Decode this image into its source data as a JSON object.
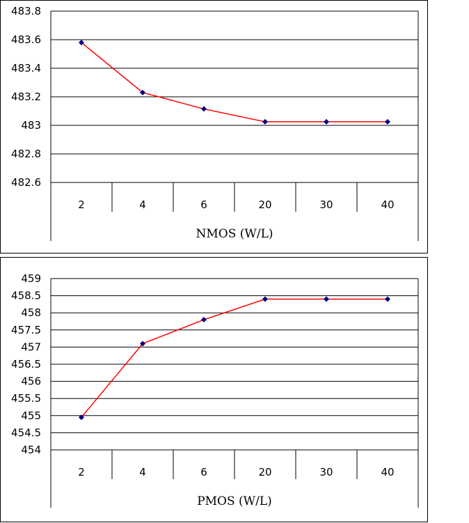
{
  "chart_data": [
    {
      "type": "line",
      "categories": [
        "2",
        "4",
        "6",
        "20",
        "30",
        "40"
      ],
      "series": [
        {
          "values": [
            483.58,
            483.23,
            483.115,
            483.025,
            483.025,
            483.025
          ],
          "line_color": "#ff0000",
          "marker_color": "#000080"
        }
      ],
      "yticks": [
        "483.8",
        "483.6",
        "483.4",
        "483.2",
        "483",
        "482.8",
        "482.6"
      ],
      "ylim": [
        482.6,
        483.8
      ],
      "xlabel": "NMOS (W/L)",
      "grid": true
    },
    {
      "type": "line",
      "categories": [
        "2",
        "4",
        "6",
        "20",
        "30",
        "40"
      ],
      "series": [
        {
          "values": [
            454.95,
            457.1,
            457.8,
            458.4,
            458.4,
            458.4
          ],
          "line_color": "#ff0000",
          "marker_color": "#000080"
        }
      ],
      "yticks": [
        "459",
        "458.5",
        "458",
        "457.5",
        "457",
        "456.5",
        "456",
        "455.5",
        "455",
        "454.5",
        "454"
      ],
      "ylim": [
        454,
        459
      ],
      "xlabel": "PMOS (W/L)",
      "grid": true
    }
  ]
}
